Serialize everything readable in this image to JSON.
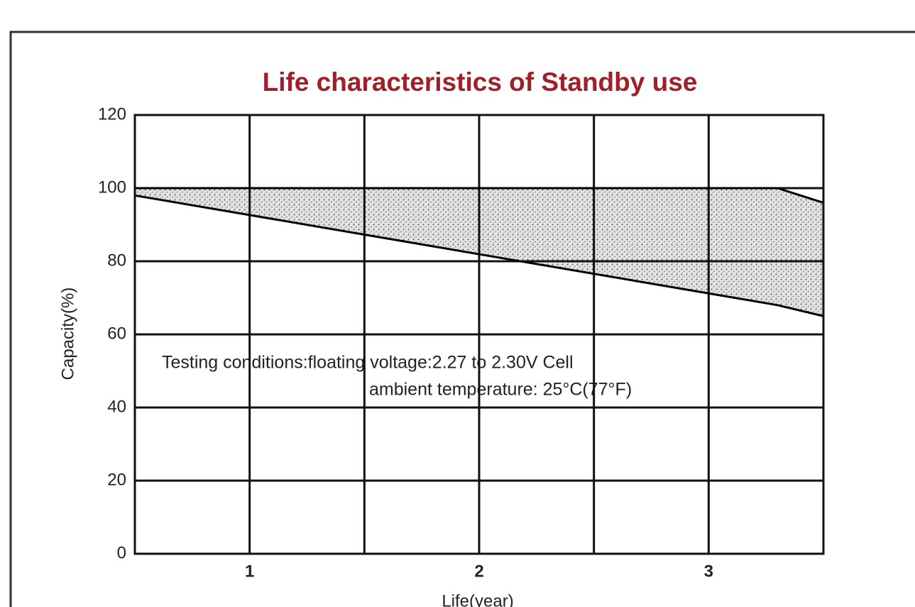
{
  "chart_data": {
    "type": "band",
    "title": "Life characteristics of Standby use",
    "x_label": "Life(year)",
    "y_label": "Capacity(%)",
    "annotations": [
      "Testing conditions:floating voltage:2.27 to 2.30V Cell",
      "ambient temperature: 25°C(77°F)"
    ],
    "x": [
      0.5,
      3.3,
      3.5
    ],
    "series": [
      {
        "name": "lower",
        "color": "#000000",
        "values": [
          98,
          68,
          65
        ]
      },
      {
        "name": "upper",
        "color": "#000000",
        "values": [
          100,
          100,
          96
        ]
      }
    ],
    "xlim": [
      0.5,
      3.5
    ],
    "xticks": [
      1,
      2,
      3
    ],
    "xminor": [
      1.5,
      2.5
    ],
    "ylim": [
      0,
      120
    ],
    "yticks": [
      0,
      20,
      40,
      60,
      80,
      100,
      120
    ],
    "grid": true
  }
}
